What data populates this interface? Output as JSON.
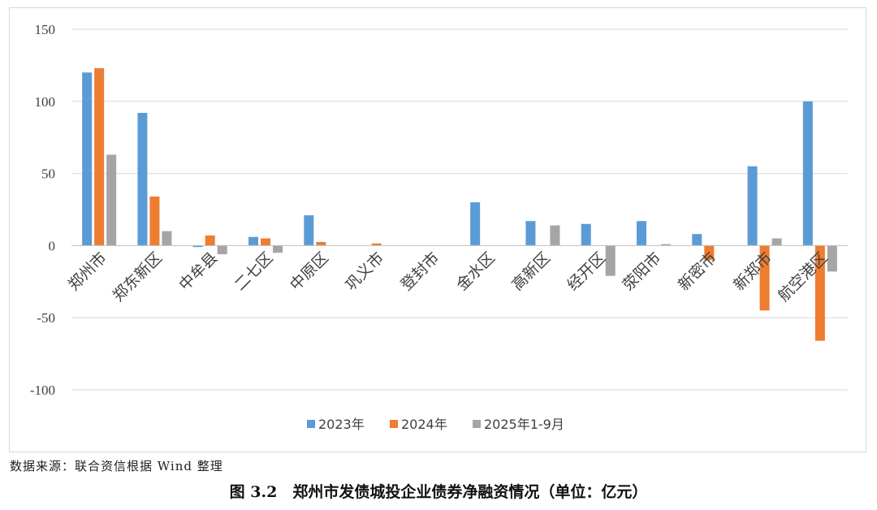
{
  "source_note": "数据来源：联合资信根据 Wind 整理",
  "caption": "图 3.2　郑州市发债城投企业债券净融资情况（单位：亿元）",
  "chart_data": {
    "type": "bar",
    "title": "",
    "xlabel": "",
    "ylabel": "",
    "ylim": [
      -100,
      150
    ],
    "yticks": [
      150,
      100,
      50,
      0,
      -50,
      -100
    ],
    "grid": true,
    "legend_position": "bottom",
    "categories": [
      "郑州市",
      "郑东新区",
      "中牟县",
      "二七区",
      "中原区",
      "巩义市",
      "登封市",
      "金水区",
      "高新区",
      "经开区",
      "荥阳市",
      "新密市",
      "新郑市",
      "航空港区"
    ],
    "series": [
      {
        "name": "2023年",
        "color": "#5b9bd5",
        "values": [
          120,
          92,
          -1,
          6,
          21,
          0,
          0,
          30,
          17,
          15,
          17,
          8,
          55,
          100
        ]
      },
      {
        "name": "2024年",
        "color": "#ed7d31",
        "values": [
          123,
          34,
          7,
          5,
          2.5,
          1.5,
          0,
          0,
          0,
          0,
          0,
          -10,
          -45,
          -66
        ]
      },
      {
        "name": "2025年1-9月",
        "color": "#a5a5a5",
        "values": [
          63,
          10,
          -6,
          -5,
          0,
          0,
          0,
          0,
          14,
          -21,
          1,
          0,
          5,
          -18
        ]
      }
    ]
  }
}
